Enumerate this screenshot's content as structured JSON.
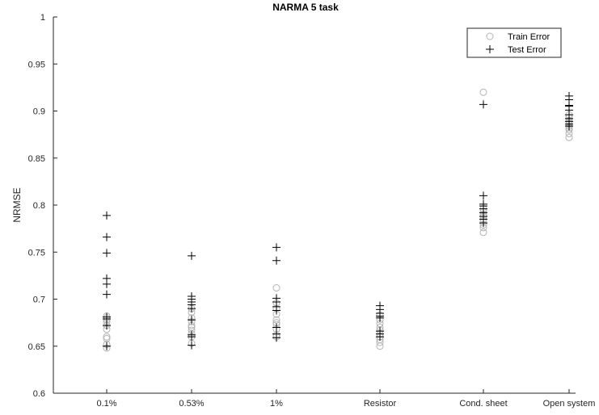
{
  "chart_data": {
    "type": "scatter",
    "title": "NARMA 5 task",
    "xlabel": "",
    "ylabel": "NRMSE",
    "categories": [
      "0.1%",
      "0.53%",
      "1%",
      "Resistor",
      "Cond. sheet",
      "Open system"
    ],
    "ylim": [
      0.6,
      1
    ],
    "yticks": [
      0.6,
      0.65,
      0.7,
      0.75,
      0.8,
      0.85,
      0.9,
      0.95,
      1
    ],
    "ytick_labels": [
      "0.6",
      "0.65",
      "0.7",
      "0.75",
      "0.8",
      "0.85",
      "0.9",
      "0.95",
      "1"
    ],
    "grid": false,
    "legend_position": "top-right",
    "series": [
      {
        "name": "Train Error",
        "marker": "circle",
        "color": "#b4b4b4",
        "values": [
          [
            0.648,
            0.652,
            0.658,
            0.66,
            0.668,
            0.672,
            0.676,
            0.678,
            0.68,
            0.682
          ],
          [
            0.653,
            0.66,
            0.663,
            0.667,
            0.67,
            0.672,
            0.676,
            0.68,
            0.686,
            0.69
          ],
          [
            0.66,
            0.662,
            0.668,
            0.673,
            0.675,
            0.678,
            0.684,
            0.69,
            0.696,
            0.712
          ],
          [
            0.65,
            0.654,
            0.657,
            0.66,
            0.663,
            0.667,
            0.67,
            0.674,
            0.678,
            0.683
          ],
          [
            0.771,
            0.776,
            0.779,
            0.782,
            0.785,
            0.788,
            0.79,
            0.793,
            0.796,
            0.92
          ],
          [
            0.872,
            0.876,
            0.88,
            0.882,
            0.884,
            0.886,
            0.888,
            0.89,
            0.893,
            0.896
          ]
        ]
      },
      {
        "name": "Test Error",
        "marker": "plus",
        "color": "#000000",
        "values": [
          [
            0.65,
            0.672,
            0.679,
            0.681,
            0.705,
            0.716,
            0.722,
            0.749,
            0.766,
            0.789
          ],
          [
            0.651,
            0.66,
            0.662,
            0.678,
            0.69,
            0.694,
            0.697,
            0.7,
            0.703,
            0.746
          ],
          [
            0.659,
            0.663,
            0.67,
            0.688,
            0.692,
            0.697,
            0.701,
            0.741,
            0.755
          ],
          [
            0.66,
            0.663,
            0.666,
            0.68,
            0.682,
            0.685,
            0.689,
            0.693
          ],
          [
            0.781,
            0.785,
            0.788,
            0.792,
            0.796,
            0.799,
            0.801,
            0.81,
            0.907
          ],
          [
            0.884,
            0.886,
            0.889,
            0.892,
            0.896,
            0.901,
            0.905,
            0.906,
            0.912,
            0.916
          ]
        ]
      }
    ]
  }
}
